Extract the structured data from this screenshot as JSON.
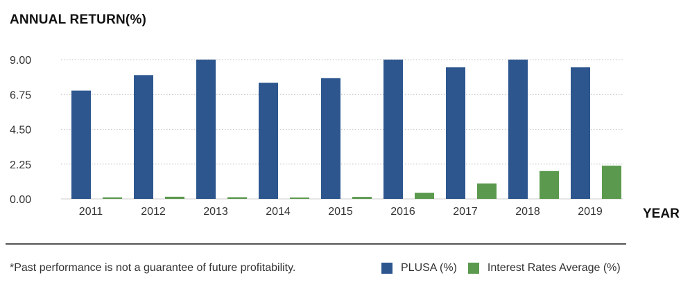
{
  "chart_data": {
    "type": "bar",
    "ylabel": "ANNUAL RETURN(%)",
    "xlabel": "YEAR",
    "categories": [
      "2011",
      "2012",
      "2013",
      "2014",
      "2015",
      "2016",
      "2017",
      "2018",
      "2019"
    ],
    "series": [
      {
        "name": "PLUSA (%)",
        "color": "#2d568e",
        "values": [
          7.0,
          8.0,
          9.0,
          7.5,
          7.8,
          9.0,
          8.5,
          9.0,
          8.5
        ]
      },
      {
        "name": "Interest Rates Average (%)",
        "color": "#5b9a4e",
        "values": [
          0.1,
          0.14,
          0.11,
          0.09,
          0.13,
          0.4,
          1.0,
          1.8,
          2.15
        ]
      }
    ],
    "ylim": [
      0,
      9
    ],
    "yticks": [
      "0.00",
      "2.25",
      "4.50",
      "6.75",
      "9.00"
    ],
    "grid": true,
    "legend": "bottom-right"
  },
  "footnote": "*Past performance is not a guarantee of future profitability."
}
